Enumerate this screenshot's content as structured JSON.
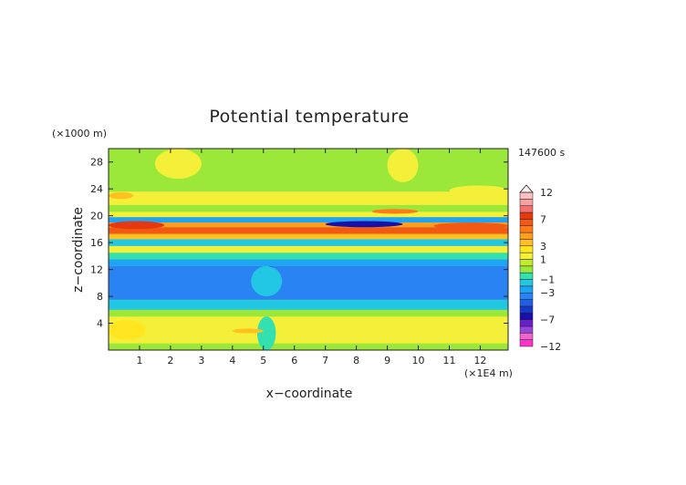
{
  "chart_data": {
    "type": "heatmap",
    "title": "Potential temperature",
    "xlabel": "x−coordinate",
    "ylabel": "z−coordinate",
    "x_unit": "(×1E4 m)",
    "y_unit": "(×1000 m)",
    "time_label": "147600 s",
    "xlim": [
      0,
      12.9
    ],
    "ylim": [
      0,
      30
    ],
    "x_ticks": [
      1,
      2,
      3,
      4,
      5,
      6,
      7,
      8,
      9,
      10,
      11,
      12
    ],
    "y_ticks": [
      4,
      8,
      12,
      16,
      20,
      24,
      28
    ],
    "colorbar": {
      "tick_labels": [
        "12",
        "7",
        "3",
        "1",
        "−1",
        "−3",
        "−7",
        "−12"
      ],
      "tick_values": [
        12,
        7,
        3,
        1,
        -1,
        -3,
        -7,
        -12
      ],
      "levels": [
        -12,
        -10,
        -9,
        -8,
        -7,
        -6,
        -5,
        -4,
        -3,
        -2,
        -1,
        -0.5,
        0.5,
        1,
        2,
        3,
        4,
        5,
        6,
        7,
        8,
        9,
        10,
        12
      ],
      "colors": [
        "#ff33cc",
        "#ee66cc",
        "#9944dd",
        "#6a1fcf",
        "#1a10a8",
        "#1538c8",
        "#1f5ee6",
        "#2a83f2",
        "#1fa3f5",
        "#22c7e3",
        "#33e0b0",
        "#9be83a",
        "#c4ea2a",
        "#f4f03a",
        "#ffe620",
        "#ffc020",
        "#ff9f1e",
        "#ff7b1a",
        "#f25a14",
        "#e53a10",
        "#f07070",
        "#f7a0a0",
        "#fbc0c0"
      ],
      "over_color": "#fff0f0",
      "extend": "max"
    },
    "bands": [
      {
        "z": [
          0.0,
          1.0
        ],
        "value": 0
      },
      {
        "z": [
          1.0,
          5.0
        ],
        "value": 1.2
      },
      {
        "z": [
          5.0,
          6.0
        ],
        "value": 0
      },
      {
        "z": [
          6.0,
          7.5
        ],
        "value": -1.5
      },
      {
        "z": [
          7.5,
          12.5
        ],
        "value": -3.5
      },
      {
        "z": [
          12.5,
          13.5
        ],
        "value": -2.2
      },
      {
        "z": [
          13.5,
          14.5
        ],
        "value": -0.6
      },
      {
        "z": [
          14.5,
          15.5
        ],
        "value": 1.5
      },
      {
        "z": [
          15.5,
          16.5
        ],
        "value": -1.2
      },
      {
        "z": [
          16.5,
          17.3
        ],
        "value": 3.2
      },
      {
        "z": [
          17.3,
          18.3
        ],
        "value": 6
      },
      {
        "z": [
          18.3,
          19.0
        ],
        "value": 4
      },
      {
        "z": [
          19.0,
          19.8
        ],
        "value": -2.5
      },
      {
        "z": [
          19.8,
          20.6
        ],
        "value": 1.5
      },
      {
        "z": [
          20.6,
          21.6
        ],
        "value": 0
      },
      {
        "z": [
          21.6,
          23.6
        ],
        "value": 1.5
      },
      {
        "z": [
          23.6,
          25.5
        ],
        "value": 0
      },
      {
        "z": [
          25.5,
          30.0
        ],
        "value": 0
      }
    ],
    "features": [
      {
        "x": [
          7.0,
          9.5
        ],
        "z": [
          18.3,
          19.2
        ],
        "value": -7
      },
      {
        "x": [
          8.5,
          10.0
        ],
        "z": [
          20.3,
          21.0
        ],
        "value": 5
      },
      {
        "x": [
          0.0,
          1.8
        ],
        "z": [
          18.0,
          19.2
        ],
        "value": 7
      },
      {
        "x": [
          10.5,
          12.9
        ],
        "z": [
          18.0,
          19.0
        ],
        "value": 6
      },
      {
        "x": [
          5.0,
          5.4
        ],
        "z": [
          10.5,
          12.5
        ],
        "value": -6
      },
      {
        "x": [
          4.6,
          5.6
        ],
        "z": [
          8.0,
          12.5
        ],
        "value": -1.5
      },
      {
        "x": [
          4.8,
          5.4
        ],
        "z": [
          0.0,
          5.0
        ],
        "value": -0.6
      },
      {
        "x": [
          4.0,
          5.0
        ],
        "z": [
          2.5,
          3.2
        ],
        "value": 3
      },
      {
        "x": [
          0.0,
          1.2
        ],
        "z": [
          1.5,
          4.5
        ],
        "value": 2
      },
      {
        "x": [
          0.0,
          0.8
        ],
        "z": [
          22.5,
          23.5
        ],
        "value": 3
      },
      {
        "x": [
          1.5,
          3.0
        ],
        "z": [
          25.5,
          30.0
        ],
        "value": 1.2
      },
      {
        "x": [
          9.0,
          10.0
        ],
        "z": [
          25.0,
          30.0
        ],
        "value": 1.2
      },
      {
        "x": [
          11.0,
          12.9
        ],
        "z": [
          23.0,
          24.5
        ],
        "value": 1.2
      }
    ]
  }
}
